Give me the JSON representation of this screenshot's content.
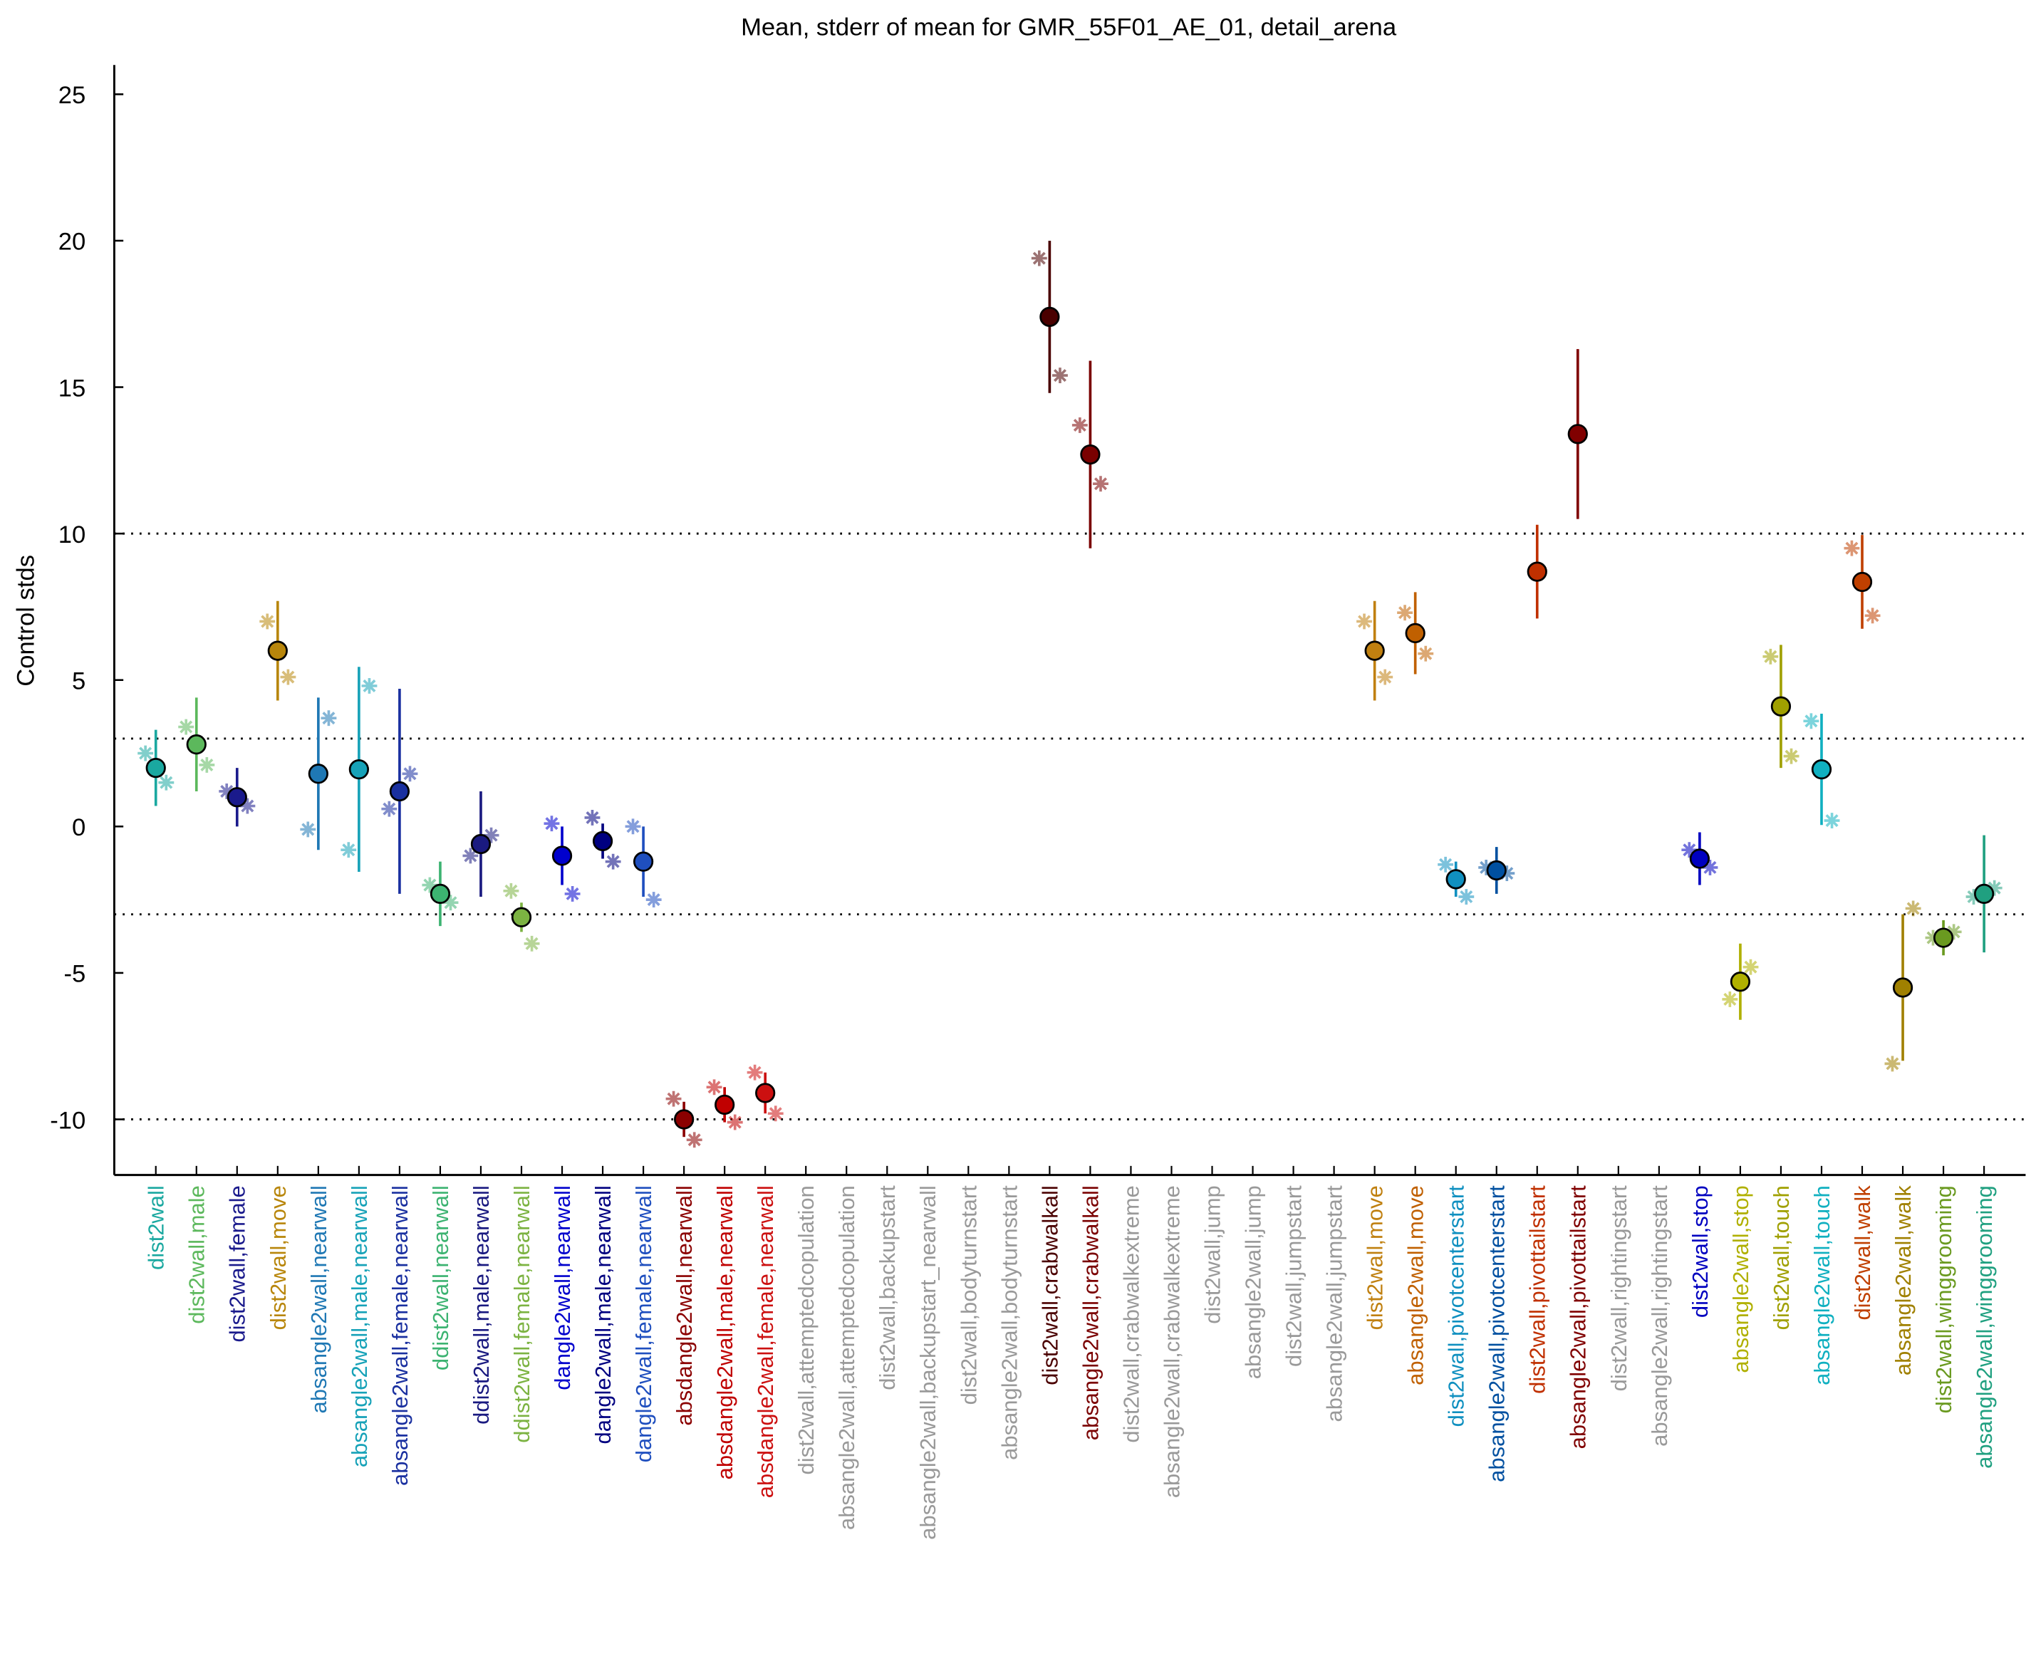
{
  "chart_data": {
    "type": "errorbar",
    "title": "Mean, stderr of mean for GMR_55F01_AE_01, detail_arena",
    "y_label": "Control stds",
    "ylim": [
      -11.9,
      26
    ],
    "yticks": [
      -10,
      -5,
      0,
      5,
      10,
      15,
      20,
      25
    ],
    "reference_lines": [
      -10,
      -3,
      3,
      10
    ],
    "categories": [
      "dist2wall",
      "dist2wall,male",
      "dist2wall,female",
      "dist2wall,move",
      "absangle2wall,nearwall",
      "absangle2wall,male,nearwall",
      "absangle2wall,female,nearwall",
      "ddist2wall,nearwall",
      "ddist2wall,male,nearwall",
      "ddist2wall,female,nearwall",
      "dangle2wall,nearwall",
      "dangle2wall,male,nearwall",
      "dangle2wall,female,nearwall",
      "absdangle2wall,nearwall",
      "absdangle2wall,male,nearwall",
      "absdangle2wall,female,nearwall",
      "dist2wall,attemptedcopulation",
      "absangle2wall,attemptedcopulation",
      "dist2wall,backupstart",
      "absangle2wall,backupstart_nearwall",
      "dist2wall,bodyturnstart",
      "absangle2wall,bodyturnstart",
      "dist2wall,crabwalkall",
      "absangle2wall,crabwalkall",
      "dist2wall,crabwalkextreme",
      "absangle2wall,crabwalkextreme",
      "dist2wall,jump",
      "absangle2wall,jump",
      "dist2wall,jumpstart",
      "absangle2wall,jumpstart",
      "dist2wall,move",
      "absangle2wall,move",
      "dist2wall,pivotcenterstart",
      "absangle2wall,pivotcenterstart",
      "dist2wall,pivottailstart",
      "absangle2wall,pivottailstart",
      "dist2wall,rightingstart",
      "absangle2wall,rightingstart",
      "dist2wall,stop",
      "absangle2wall,stop",
      "dist2wall,touch",
      "absangle2wall,touch",
      "dist2wall,walk",
      "absangle2wall,walk",
      "dist2wall,winggrooming",
      "absangle2wall,winggrooming"
    ],
    "colors": [
      "#1aa8a0",
      "#5cb85c",
      "#1a1a8c",
      "#b8860b",
      "#1f78b4",
      "#17a2b8",
      "#1a30a0",
      "#3cb371",
      "#1a1a80",
      "#7cb342",
      "#0000cd",
      "#000080",
      "#1f4fbf",
      "#8b0000",
      "#c00000",
      "#cc1010",
      "#999999",
      "#999999",
      "#999999",
      "#999999",
      "#999999",
      "#999999",
      "#4a0000",
      "#7a0000",
      "#999999",
      "#999999",
      "#999999",
      "#999999",
      "#999999",
      "#999999",
      "#c08010",
      "#c06000",
      "#1090c0",
      "#0050a0",
      "#c03000",
      "#800000",
      "#999999",
      "#999999",
      "#0000c0",
      "#b0b000",
      "#a0a000",
      "#10b0c0",
      "#c04000",
      "#a08000",
      "#6a9a20",
      "#20a080"
    ],
    "values": [
      2.0,
      2.8,
      1.0,
      6.0,
      1.8,
      1.95,
      1.2,
      -2.3,
      -0.6,
      -3.1,
      -1.0,
      -0.5,
      -1.2,
      -10.0,
      -9.5,
      -9.1,
      null,
      null,
      null,
      null,
      null,
      null,
      17.4,
      12.7,
      null,
      null,
      null,
      null,
      null,
      null,
      6.0,
      6.6,
      -1.8,
      -1.5,
      8.7,
      13.4,
      null,
      null,
      -1.1,
      -5.3,
      4.1,
      1.95,
      8.35,
      -5.5,
      -3.8,
      -2.3
    ],
    "errors": [
      1.3,
      1.6,
      1.0,
      1.7,
      2.6,
      3.5,
      3.5,
      1.1,
      1.8,
      0.5,
      1.0,
      0.6,
      1.2,
      0.6,
      0.6,
      0.7,
      null,
      null,
      null,
      null,
      null,
      null,
      2.6,
      3.2,
      null,
      null,
      null,
      null,
      null,
      null,
      1.7,
      1.4,
      0.6,
      0.8,
      1.6,
      2.9,
      null,
      null,
      0.9,
      1.3,
      2.1,
      1.9,
      1.6,
      2.5,
      0.6,
      2.0
    ],
    "star_left": [
      2.5,
      3.4,
      1.2,
      7.0,
      -0.1,
      -0.8,
      0.6,
      -2.0,
      -1.0,
      -2.2,
      0.1,
      0.3,
      0.0,
      -9.3,
      -8.9,
      -8.4,
      null,
      null,
      null,
      null,
      null,
      null,
      19.4,
      13.7,
      null,
      null,
      null,
      null,
      null,
      null,
      7.0,
      7.3,
      -1.3,
      -1.4,
      null,
      null,
      null,
      null,
      -0.8,
      -5.9,
      5.8,
      3.6,
      9.5,
      -8.1,
      -3.8,
      -2.4
    ],
    "star_right": [
      1.5,
      2.1,
      0.7,
      5.1,
      3.7,
      4.8,
      1.8,
      -2.6,
      -0.3,
      -4.0,
      -2.3,
      -1.2,
      -2.5,
      -10.7,
      -10.1,
      -9.8,
      null,
      null,
      null,
      null,
      null,
      null,
      15.4,
      11.7,
      null,
      null,
      null,
      null,
      null,
      null,
      5.1,
      5.9,
      -2.4,
      -1.6,
      null,
      null,
      null,
      null,
      -1.4,
      -4.8,
      2.4,
      0.2,
      7.2,
      -2.8,
      -3.6,
      -2.1
    ]
  }
}
